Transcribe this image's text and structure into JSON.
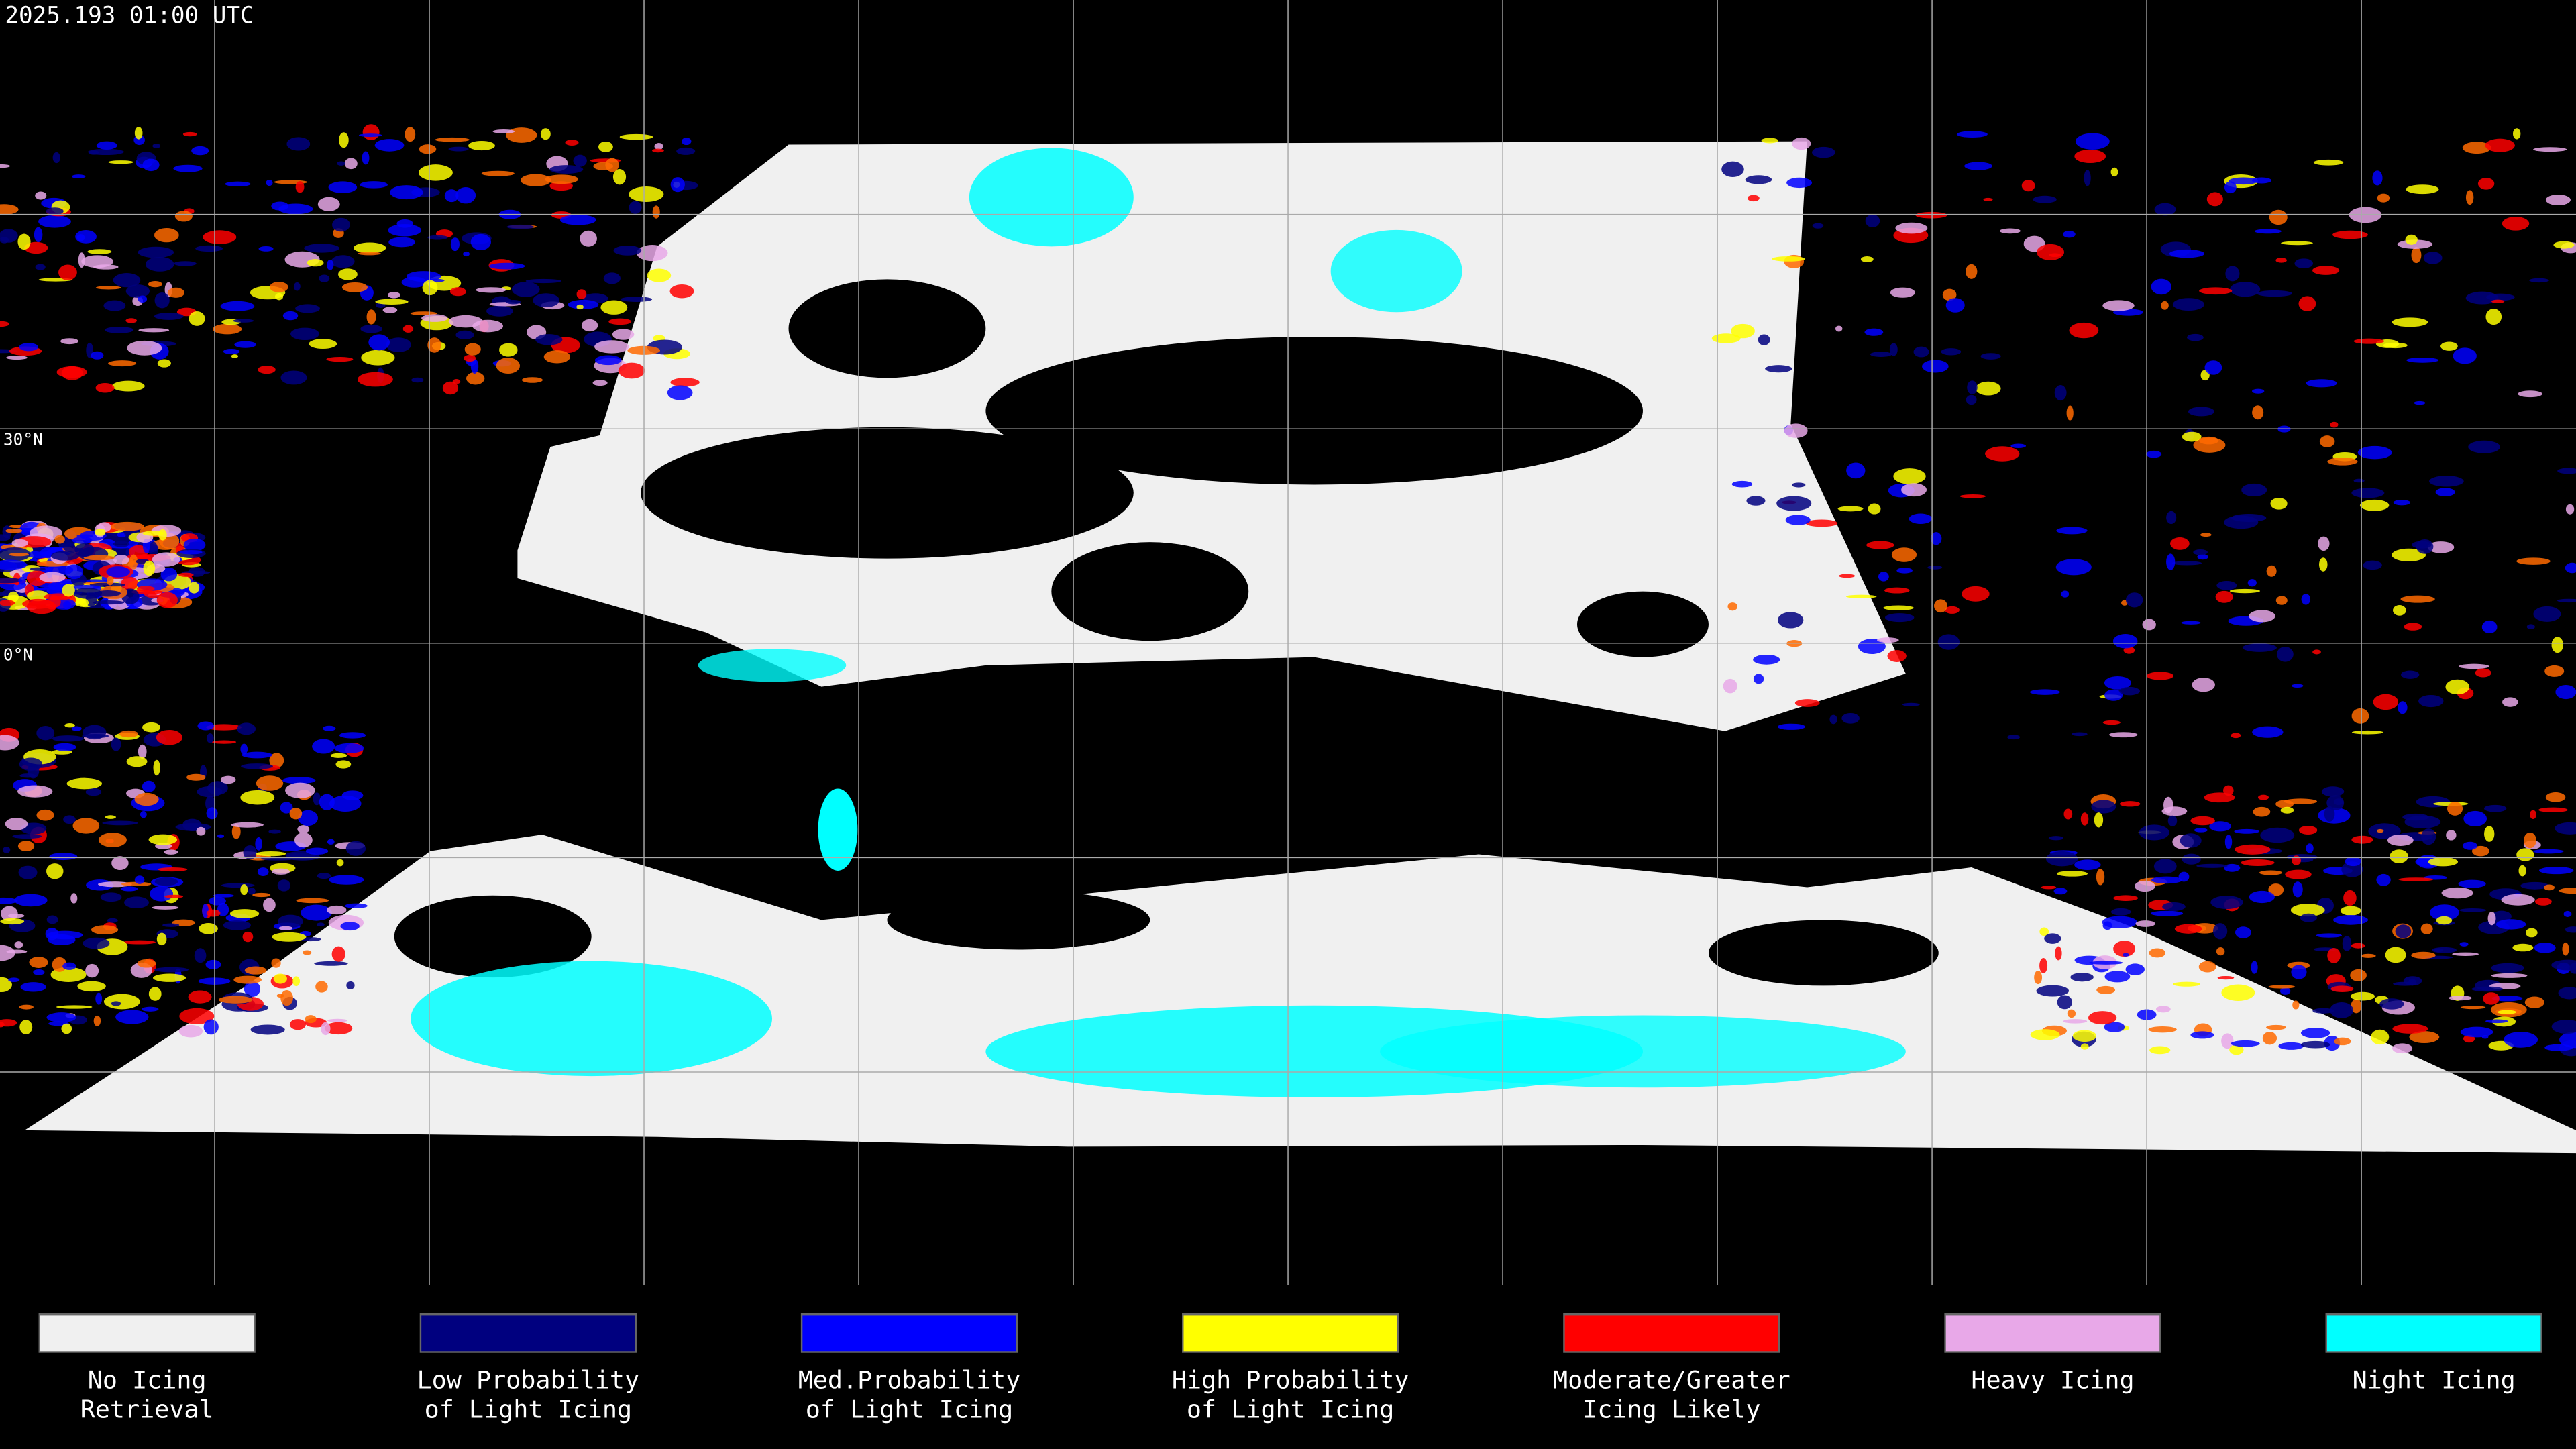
{
  "header": {
    "timestamp": "2025.193 01:00 UTC"
  },
  "map": {
    "latitude_labels": [
      "30°N",
      "0°N"
    ]
  },
  "legend": {
    "items": [
      {
        "lines": [
          "No Icing",
          "Retrieval"
        ],
        "color": "#f0f0f0"
      },
      {
        "lines": [
          "Low Probability",
          "of Light Icing"
        ],
        "color": "#00007f"
      },
      {
        "lines": [
          "Med.Probability",
          "of Light Icing"
        ],
        "color": "#0000ff"
      },
      {
        "lines": [
          "High Probability",
          "of Light Icing"
        ],
        "color": "#ffff00"
      },
      {
        "lines": [
          "Moderate/Greater",
          "Icing Likely"
        ],
        "color": "#ff0000"
      },
      {
        "lines": [
          "Heavy Icing"
        ],
        "color": "#e8a8e8"
      },
      {
        "lines": [
          "Night Icing"
        ],
        "color": "#00ffff"
      }
    ]
  }
}
